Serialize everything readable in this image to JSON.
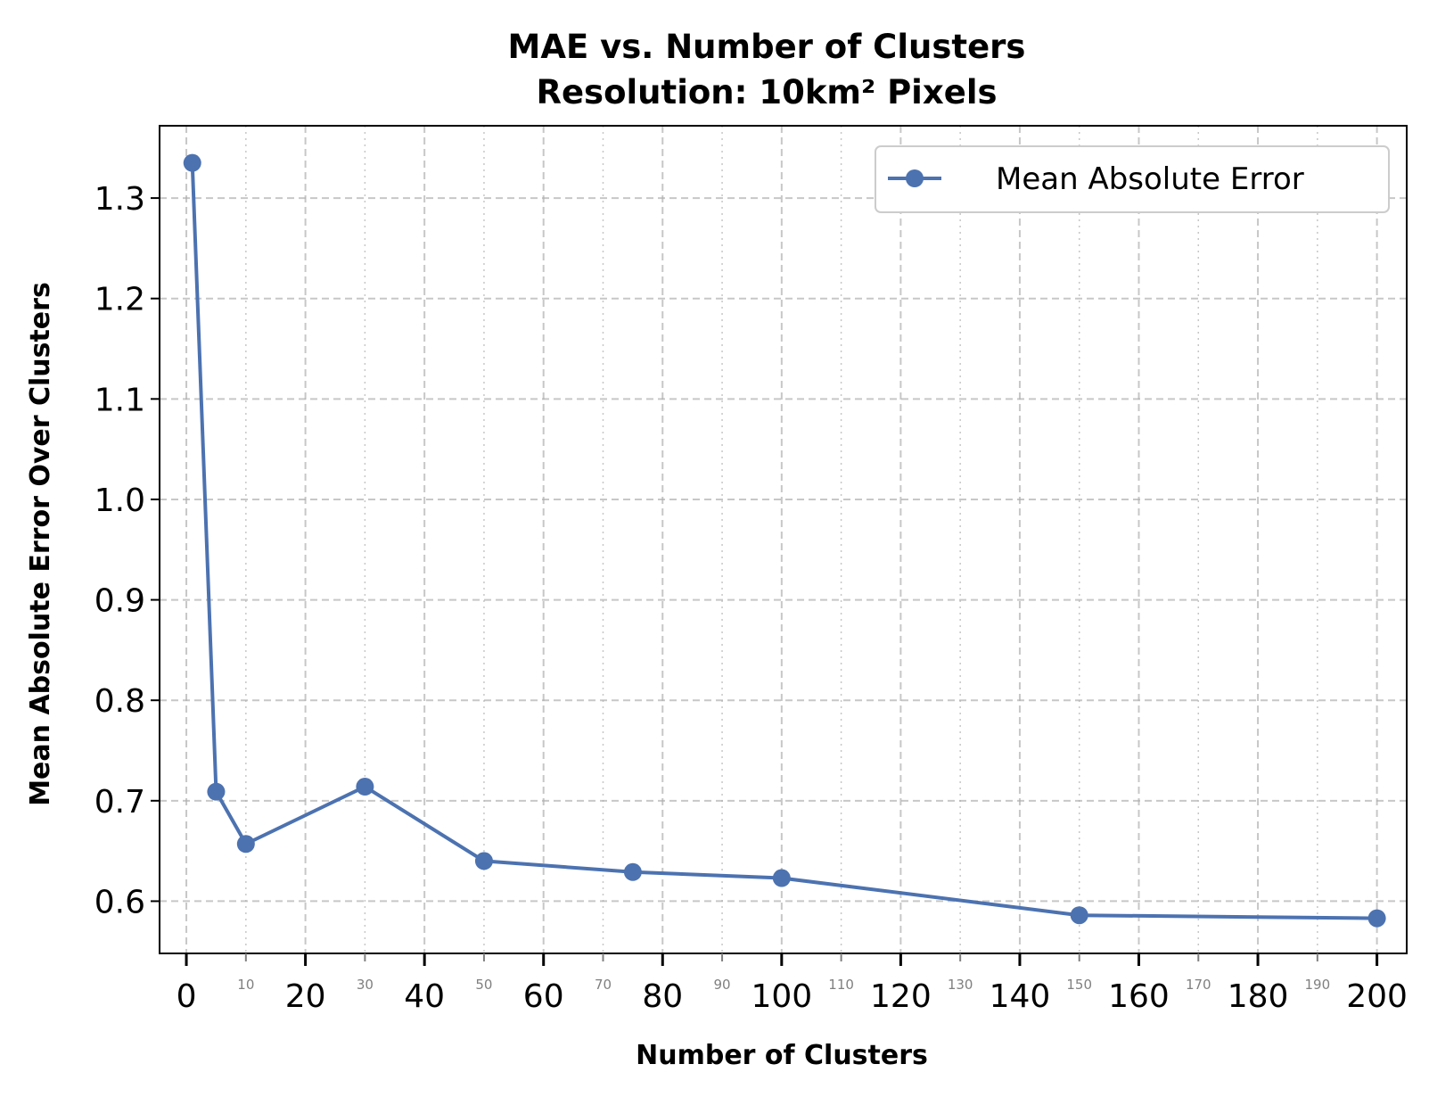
{
  "chart_data": {
    "type": "line",
    "title": "MAE vs. Number of Clusters",
    "subtitle": "Resolution: 10km² Pixels",
    "xlabel": "Number of Clusters",
    "ylabel": "Mean Absolute Error Over Clusters",
    "xlim": [
      -4.5,
      205
    ],
    "ylim": [
      0.548,
      1.372
    ],
    "x_major_ticks": [
      0,
      20,
      40,
      60,
      80,
      100,
      120,
      140,
      160,
      180,
      200
    ],
    "x_major_tick_labels": [
      "0",
      "20",
      "40",
      "60",
      "80",
      "100",
      "120",
      "140",
      "160",
      "180",
      "200"
    ],
    "x_minor_ticks": [
      10,
      30,
      50,
      70,
      90,
      110,
      130,
      150,
      170,
      190
    ],
    "x_minor_tick_labels": [
      "10",
      "30",
      "50",
      "70",
      "90",
      "110",
      "130",
      "150",
      "170",
      "190"
    ],
    "y_ticks": [
      0.6,
      0.7,
      0.8,
      0.9,
      1.0,
      1.1,
      1.2,
      1.3
    ],
    "y_tick_labels": [
      "0.6",
      "0.7",
      "0.8",
      "0.9",
      "1.0",
      "1.1",
      "1.2",
      "1.3"
    ],
    "grid": true,
    "legend_position": "top-right",
    "series": [
      {
        "name": "Mean Absolute Error",
        "color": "#4c72b0",
        "marker": "circle",
        "x": [
          1,
          5,
          10,
          30,
          50,
          75,
          100,
          150,
          200
        ],
        "y": [
          1.335,
          0.709,
          0.657,
          0.714,
          0.64,
          0.629,
          0.623,
          0.586,
          0.583
        ]
      }
    ]
  }
}
